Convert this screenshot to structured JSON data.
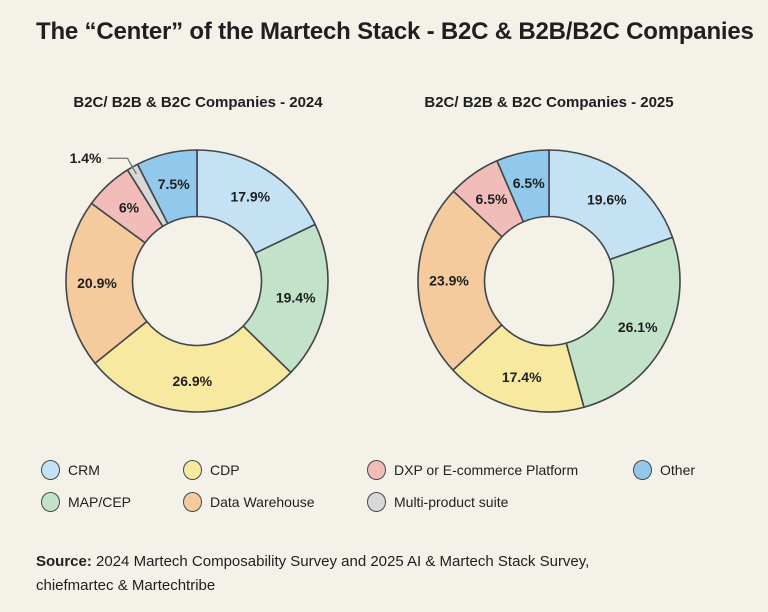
{
  "title": "The “Center” of the Martech Stack - B2C & B2B/B2C Companies",
  "colors": {
    "background": "#f4f1e9",
    "outline": "#40464a",
    "text": "#1d1f20",
    "leader_line": "#7c7c7c"
  },
  "chart_data": {
    "type": "pie",
    "subtype": "donut",
    "legend_position": "bottom",
    "charts": [
      {
        "title": "B2C/ B2B & B2C Companies - 2024",
        "series": [
          {
            "category": "CRM",
            "value": 17.9,
            "display": "17.9%"
          },
          {
            "category": "MAP/CEP",
            "value": 19.4,
            "display": "19.4%"
          },
          {
            "category": "CDP",
            "value": 26.9,
            "display": "26.9%"
          },
          {
            "category": "Data Warehouse",
            "value": 20.9,
            "display": "20.9%"
          },
          {
            "category": "DXP or E-commerce Platform",
            "value": 6,
            "display": "6%"
          },
          {
            "category": "Multi-product suite",
            "value": 1.4,
            "display": "1.4%",
            "outside_label": true
          },
          {
            "category": "Other",
            "value": 7.5,
            "display": "7.5%"
          }
        ]
      },
      {
        "title": "B2C/ B2B & B2C Companies - 2025",
        "series": [
          {
            "category": "CRM",
            "value": 19.6,
            "display": "19.6%"
          },
          {
            "category": "MAP/CEP",
            "value": 26.1,
            "display": "26.1%"
          },
          {
            "category": "CDP",
            "value": 17.4,
            "display": "17.4%"
          },
          {
            "category": "Data Warehouse",
            "value": 23.9,
            "display": "23.9%"
          },
          {
            "category": "DXP or E-commerce Platform",
            "value": 6.5,
            "display": "6.5%"
          },
          {
            "category": "Other",
            "value": 6.5,
            "display": "6.5%"
          }
        ]
      }
    ]
  },
  "legend": {
    "items": [
      {
        "label": "CRM",
        "color": "#c5e1f4"
      },
      {
        "label": "CDP",
        "color": "#f8e9a1"
      },
      {
        "label": "DXP or E-commerce Platform",
        "color": "#f2bcb9"
      },
      {
        "label": "Other",
        "color": "#92c8ec"
      },
      {
        "label": "MAP/CEP",
        "color": "#c2e3c9"
      },
      {
        "label": "Data Warehouse",
        "color": "#f5cb9d"
      },
      {
        "label": "Multi-product suite",
        "color": "#d8d8d6"
      }
    ]
  },
  "source": {
    "label": "Source:",
    "text": "2024 Martech Composability Survey and 2025 AI & Martech Stack Survey, chiefmartec & Martechtribe"
  }
}
